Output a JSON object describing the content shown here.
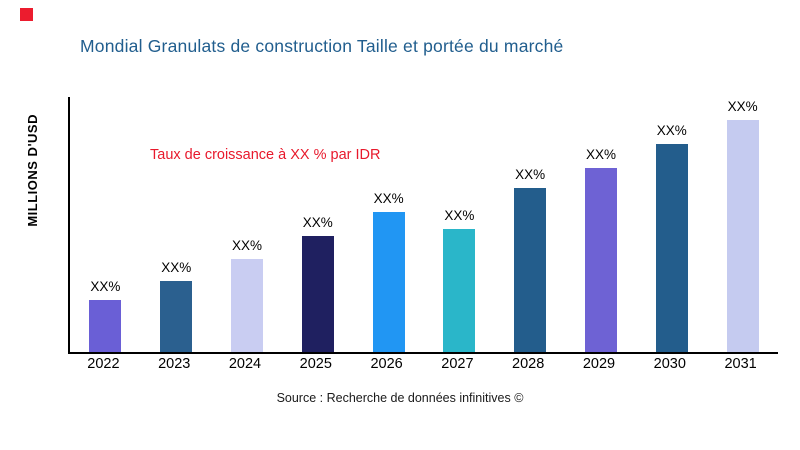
{
  "page": {
    "title": "Mondial Granulats de construction Taille et portée du marché",
    "annotation": "Taux de croissance à XX % par IDR",
    "y_axis_label": "MILLIONS D'USD",
    "source": "Source : Recherche de données infinitives ©"
  },
  "colors": {
    "title": "#215e8e",
    "annotation": "#e8192c",
    "accent_square": "#ec1c2e",
    "axis": "#000000"
  },
  "chart_data": {
    "type": "bar",
    "title": "Mondial Granulats de construction Taille et portée du marché",
    "xlabel": "",
    "ylabel": "MILLIONS D'USD",
    "categories": [
      "2022",
      "2023",
      "2024",
      "2025",
      "2026",
      "2027",
      "2028",
      "2029",
      "2030",
      "2031"
    ],
    "values": [
      52,
      71,
      93,
      116,
      140,
      123,
      164,
      184,
      208,
      232
    ],
    "values_unit": "relative-height-px (actual values masked as XX% in source image)",
    "bar_labels": [
      "XX%",
      "XX%",
      "XX%",
      "XX%",
      "XX%",
      "XX%",
      "XX%",
      "XX%",
      "XX%",
      "XX%"
    ],
    "bar_colors": [
      "#6a5fd6",
      "#2b608f",
      "#c9cdf2",
      "#1f2060",
      "#2196f3",
      "#2ab6c9",
      "#235d8c",
      "#6e62d4",
      "#235d8c",
      "#c5cbf0"
    ],
    "annotation": "Taux de croissance à XX % par IDR",
    "source": "Source : Recherche de données infinitives ©",
    "grid": false,
    "legend": false,
    "ylim": [
      0,
      255
    ]
  }
}
